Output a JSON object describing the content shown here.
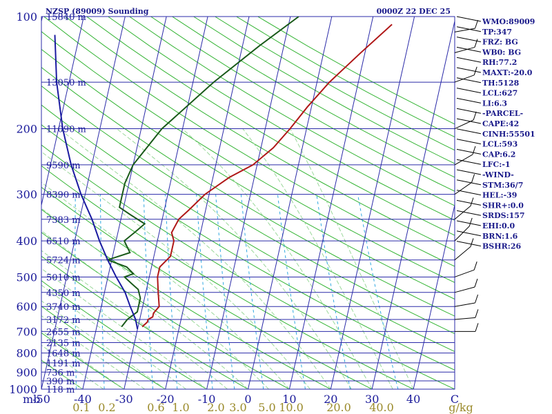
{
  "chart_data": {
    "type": "line",
    "title": "NZSP (89009) Sounding",
    "time_label": "0000Z 22 DEC 25",
    "pressure_ticks": [
      100,
      200,
      300,
      400,
      500,
      600,
      700,
      800,
      900,
      1000
    ],
    "pressure_range": [
      100,
      1000
    ],
    "pressure_scale": "log",
    "temperature_ticks": [
      "-50",
      "-40",
      "-30",
      "-20",
      "-10",
      "0",
      "10",
      "20",
      "30",
      "40",
      "C"
    ],
    "temperature_range": [
      -50,
      50
    ],
    "mixing_ratio_ticks": [
      "0.1",
      "0.2",
      "0.6",
      "1.0",
      "2.0",
      "3.0",
      "5.0",
      "10.0",
      "20.0",
      "40.0",
      "g/kg"
    ],
    "pressure_axis_unit": "mb",
    "height_levels": [
      {
        "p": 100,
        "label": "15840 m"
      },
      {
        "p": 150,
        "label": "13050 m"
      },
      {
        "p": 200,
        "label": "11090 m"
      },
      {
        "p": 250,
        "label": "9590 m"
      },
      {
        "p": 300,
        "label": "8390 m"
      },
      {
        "p": 350,
        "label": "7383 m"
      },
      {
        "p": 400,
        "label": "6510 m"
      },
      {
        "p": 450,
        "label": "5724 m"
      },
      {
        "p": 500,
        "label": "5010 m"
      },
      {
        "p": 550,
        "label": "4350 m"
      },
      {
        "p": 600,
        "label": "3740 m"
      },
      {
        "p": 650,
        "label": "3172 m"
      },
      {
        "p": 700,
        "label": "2655 m"
      },
      {
        "p": 750,
        "label": "2135 m"
      },
      {
        "p": 800,
        "label": "1648 m"
      },
      {
        "p": 850,
        "label": "1191 m"
      },
      {
        "p": 900,
        "label": "736 m"
      },
      {
        "p": 950,
        "label": "390 m"
      },
      {
        "p": 1000,
        "label": "118 m"
      }
    ],
    "series": [
      {
        "name": "temperature",
        "color": "#b01818",
        "points": [
          {
            "p": 680,
            "t": -29
          },
          {
            "p": 660,
            "t": -28
          },
          {
            "p": 650,
            "t": -28
          },
          {
            "p": 640,
            "t": -27
          },
          {
            "p": 625,
            "t": -27
          },
          {
            "p": 600,
            "t": -26
          },
          {
            "p": 550,
            "t": -27
          },
          {
            "p": 500,
            "t": -28
          },
          {
            "p": 470,
            "t": -28
          },
          {
            "p": 440,
            "t": -26
          },
          {
            "p": 400,
            "t": -26
          },
          {
            "p": 380,
            "t": -27
          },
          {
            "p": 350,
            "t": -26
          },
          {
            "p": 330,
            "t": -24
          },
          {
            "p": 300,
            "t": -21
          },
          {
            "p": 270,
            "t": -16
          },
          {
            "p": 250,
            "t": -11
          },
          {
            "p": 225,
            "t": -7
          },
          {
            "p": 200,
            "t": -4
          },
          {
            "p": 175,
            "t": -1
          },
          {
            "p": 150,
            "t": 3
          },
          {
            "p": 125,
            "t": 9
          },
          {
            "p": 105,
            "t": 15
          }
        ]
      },
      {
        "name": "dewpoint",
        "color": "#1a5a1a",
        "points": [
          {
            "p": 680,
            "t": -34
          },
          {
            "p": 650,
            "t": -33
          },
          {
            "p": 620,
            "t": -31
          },
          {
            "p": 600,
            "t": -31
          },
          {
            "p": 570,
            "t": -31
          },
          {
            "p": 540,
            "t": -32
          },
          {
            "p": 520,
            "t": -34
          },
          {
            "p": 500,
            "t": -36
          },
          {
            "p": 490,
            "t": -34
          },
          {
            "p": 470,
            "t": -36
          },
          {
            "p": 450,
            "t": -41
          },
          {
            "p": 430,
            "t": -36
          },
          {
            "p": 400,
            "t": -38
          },
          {
            "p": 380,
            "t": -36
          },
          {
            "p": 360,
            "t": -34
          },
          {
            "p": 340,
            "t": -38
          },
          {
            "p": 325,
            "t": -41
          },
          {
            "p": 300,
            "t": -41
          },
          {
            "p": 280,
            "t": -41
          },
          {
            "p": 250,
            "t": -40
          },
          {
            "p": 200,
            "t": -35
          },
          {
            "p": 150,
            "t": -25
          },
          {
            "p": 120,
            "t": -16
          },
          {
            "p": 100,
            "t": -8
          }
        ]
      },
      {
        "name": "parcel",
        "color": "#1a1aa0",
        "points": [
          {
            "p": 690,
            "t": -30
          },
          {
            "p": 650,
            "t": -31
          },
          {
            "p": 600,
            "t": -33
          },
          {
            "p": 550,
            "t": -35
          },
          {
            "p": 500,
            "t": -38
          },
          {
            "p": 450,
            "t": -41
          },
          {
            "p": 400,
            "t": -44
          },
          {
            "p": 350,
            "t": -47
          },
          {
            "p": 300,
            "t": -51
          },
          {
            "p": 250,
            "t": -55
          },
          {
            "p": 200,
            "t": -59
          },
          {
            "p": 150,
            "t": -63
          },
          {
            "p": 112,
            "t": -66
          }
        ]
      }
    ],
    "indices": [
      "WMO:89009",
      "TP:347",
      "FRZ: BG",
      "WB0: BG",
      "RH:77.2",
      "MAXT:-20.0",
      "TH:5128",
      "LCL:627",
      "LI:6.3",
      "-PARCEL-",
      "CAPE:42",
      "CINH:55501",
      "LCL:593",
      "CAP:6.2",
      "LFC:-1",
      "-WIND-",
      "STM:36/7",
      "HEL:-39",
      "SHR+:0.0",
      "SRDS:157",
      "EHI:0.0",
      "BRN:1.6",
      "BSHR:26"
    ]
  }
}
